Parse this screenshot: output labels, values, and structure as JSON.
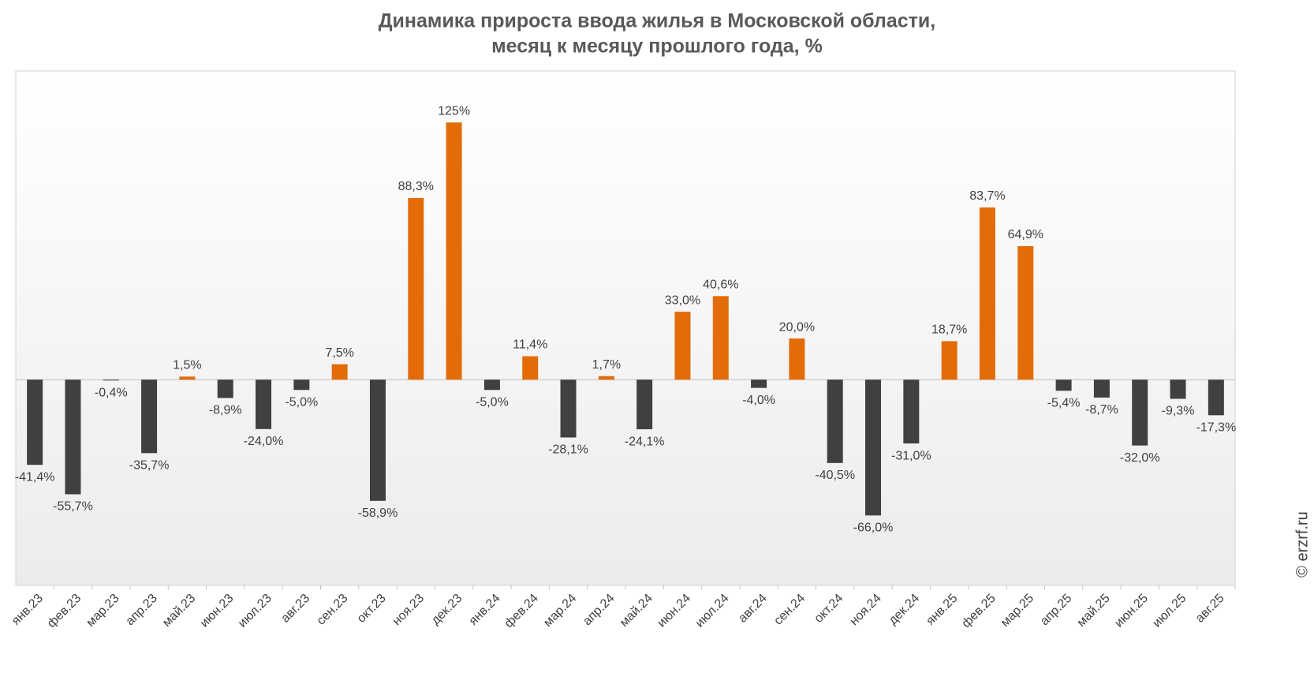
{
  "chart_data": {
    "type": "bar",
    "title": [
      "Динамика прироста ввода жилья в Московской области,",
      "месяц к месяцу прошлого года, %"
    ],
    "categories": [
      "янв.23",
      "фев.23",
      "мар.23",
      "апр.23",
      "май.23",
      "июн.23",
      "июл.23",
      "авг.23",
      "сен.23",
      "окт.23",
      "ноя.23",
      "дек.23",
      "янв.24",
      "фев.24",
      "мар.24",
      "апр.24",
      "май.24",
      "июн.24",
      "июл.24",
      "авг.24",
      "сен.24",
      "окт.24",
      "ноя.24",
      "дек.24",
      "янв.25",
      "фев.25",
      "мар.25",
      "апр.25",
      "май.25",
      "июн.25",
      "июл.25",
      "авг.25"
    ],
    "values": [
      -41.4,
      -55.7,
      -0.4,
      -35.7,
      1.5,
      -8.9,
      -24.0,
      -5.0,
      7.5,
      -58.9,
      88.3,
      125,
      -5.0,
      11.4,
      -28.1,
      1.7,
      -24.1,
      33.0,
      40.6,
      -4.0,
      20.0,
      -40.5,
      -66.0,
      -31.0,
      18.7,
      83.7,
      64.9,
      -5.4,
      -8.7,
      -32.0,
      -9.3,
      -17.3
    ],
    "value_labels": [
      "-41,4%",
      "-55,7%",
      "-0,4%",
      "-35,7%",
      "1,5%",
      "-8,9%",
      "-24,0%",
      "-5,0%",
      "7,5%",
      "-58,9%",
      "88,3%",
      "125%",
      "-5,0%",
      "11,4%",
      "-28,1%",
      "1,7%",
      "-24,1%",
      "33,0%",
      "40,6%",
      "-4,0%",
      "20,0%",
      "-40,5%",
      "-66,0%",
      "-31,0%",
      "18,7%",
      "83,7%",
      "64,9%",
      "-5,4%",
      "-8,7%",
      "-32,0%",
      "-9,3%",
      "-17,3%"
    ],
    "color": "#e36c09",
    "negative_color": "#404040",
    "ylim": [
      -100,
      150
    ],
    "watermark": "© erzrf.ru"
  }
}
